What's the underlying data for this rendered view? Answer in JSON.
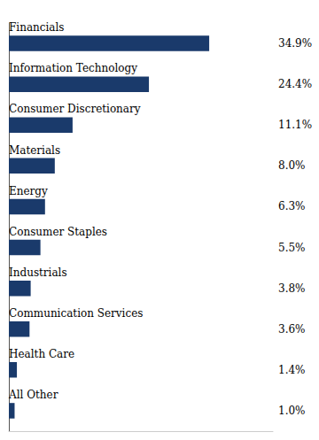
{
  "chart_data": {
    "type": "bar",
    "orientation": "horizontal",
    "categories": [
      "Financials",
      "Information Technology",
      "Consumer Discretionary",
      "Materials",
      "Energy",
      "Consumer Staples",
      "Industrials",
      "Communication Services",
      "Health Care",
      "All Other"
    ],
    "values": [
      34.9,
      24.4,
      11.1,
      8.0,
      6.3,
      5.5,
      3.8,
      3.6,
      1.4,
      1.0
    ],
    "value_labels": [
      "34.9%",
      "24.4%",
      "11.1%",
      "8.0%",
      "6.3%",
      "5.5%",
      "3.8%",
      "3.6%",
      "1.4%",
      "1.0%"
    ],
    "color": "#1a3a6b",
    "xlim": [
      0,
      46
    ],
    "data_labels": true,
    "tick_labels": "y",
    "grid": false
  }
}
